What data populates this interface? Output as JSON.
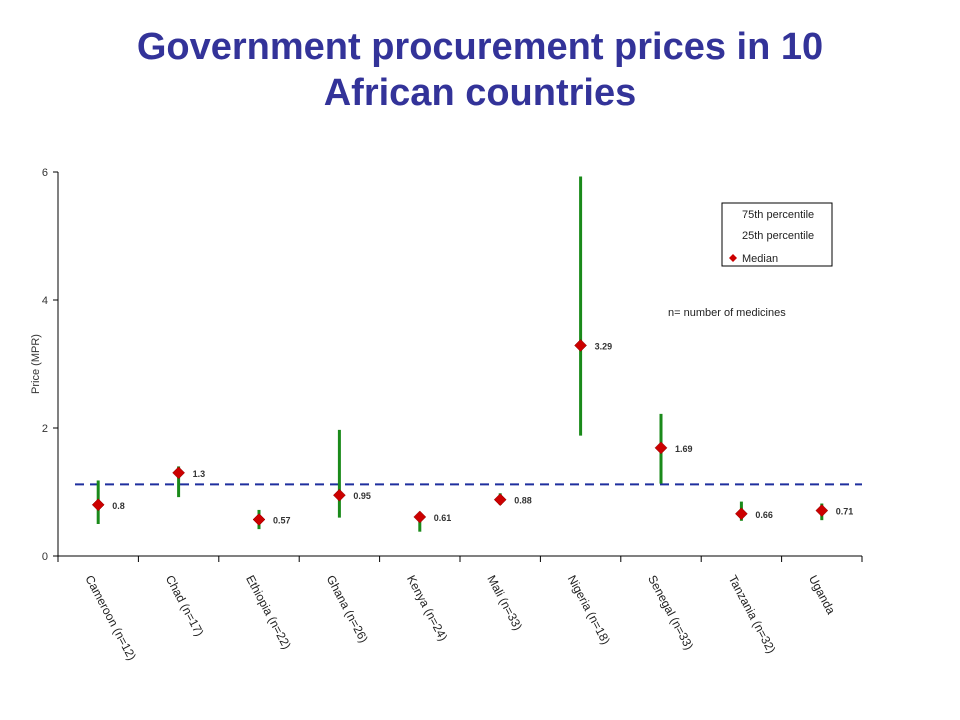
{
  "title_line1": "Government procurement prices in 10",
  "title_line2": "African countries",
  "colors": {
    "title": "#333399",
    "range": "#1a8a1a",
    "median": "#cc0000",
    "reference_line": "#1f2f9e"
  },
  "chart_data": {
    "type": "scatter",
    "title": "Government procurement prices in 10 African countries",
    "ylabel": "Price (MPR)",
    "xlabel": "",
    "ylim": [
      0,
      6
    ],
    "yticks": [
      0,
      2,
      4,
      6
    ],
    "grid": false,
    "legend": {
      "placement": "top-right",
      "entries": [
        "75th percentile",
        "25th percentile",
        "Median"
      ]
    },
    "annotation": "n= number of medicines",
    "categories": [
      "Cameroon (n=12)",
      "Chad (n=17)",
      "Ethiopia (n=22)",
      "Ghana (n=26)",
      "Kenya (n=24)",
      "Mali (n=33)",
      "Nigeria (n=18)",
      "Senegal (n=33)",
      "Tanzania (n=32)",
      "Uganda"
    ],
    "median": [
      0.8,
      1.3,
      0.57,
      0.95,
      0.61,
      0.88,
      3.29,
      1.69,
      0.66,
      0.71
    ],
    "median_labels": [
      "0.8",
      "1.3",
      "0.57",
      "0.95",
      "0.61",
      "0.88",
      "3.29",
      "1.69",
      "0.66",
      "0.71"
    ],
    "p25": [
      0.5,
      0.92,
      0.42,
      0.6,
      0.38,
      0.8,
      1.88,
      1.13,
      0.55,
      0.56
    ],
    "p75": [
      1.18,
      1.4,
      0.72,
      1.97,
      0.68,
      0.98,
      5.93,
      2.22,
      0.85,
      0.82
    ],
    "reference_line_y": 1.12
  }
}
